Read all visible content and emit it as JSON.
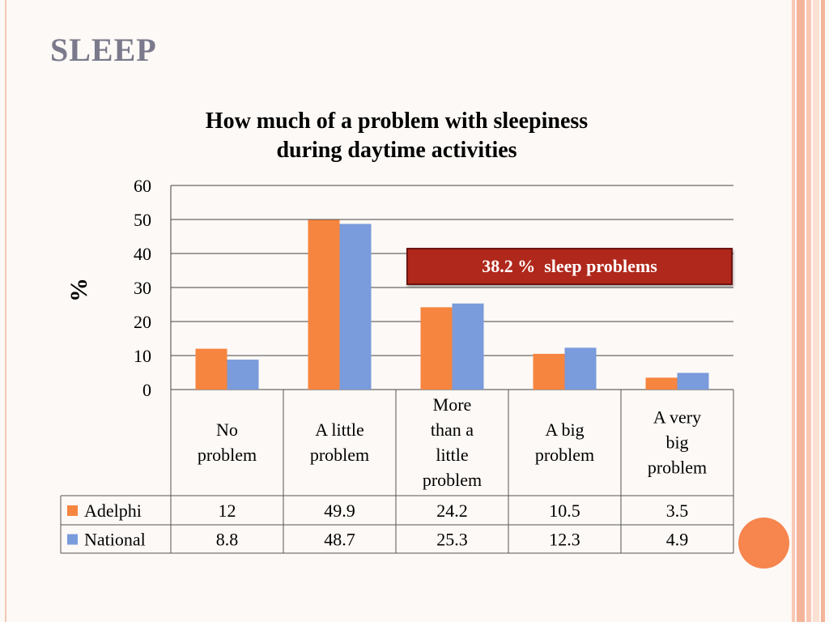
{
  "slide": {
    "title": "SLEEP",
    "accent_color": "#f6854e",
    "stripe_colors": [
      "#f8c8b4",
      "#f4b49a",
      "#fbe0d4"
    ]
  },
  "callout": {
    "text": "38.2 %  sleep problems",
    "color": "#b0271c"
  },
  "chart_data": {
    "type": "bar",
    "title_lines": [
      "How much of a problem with sleepiness",
      "during daytime activities"
    ],
    "ylabel": "%",
    "ylim": [
      0,
      60
    ],
    "yticks": [
      0,
      10,
      20,
      30,
      40,
      50,
      60
    ],
    "grid": true,
    "categories": [
      [
        "No",
        "problem"
      ],
      [
        "A little",
        "problem"
      ],
      [
        "More",
        "than a",
        "little",
        "problem"
      ],
      [
        "A big",
        "problem"
      ],
      [
        "A very",
        "big",
        "problem"
      ]
    ],
    "series": [
      {
        "name": "Adelphi",
        "color": "#f6853f",
        "values": [
          12,
          49.9,
          24.2,
          10.5,
          3.5
        ],
        "labels": [
          "12",
          "49.9",
          "24.2",
          "10.5",
          "3.5"
        ]
      },
      {
        "name": "National",
        "color": "#7a9bdc",
        "values": [
          8.8,
          48.7,
          25.3,
          12.3,
          4.9
        ],
        "labels": [
          "8.8",
          "48.7",
          "25.3",
          "12.3",
          "4.9"
        ]
      }
    ],
    "legend_placement": "data-table"
  }
}
